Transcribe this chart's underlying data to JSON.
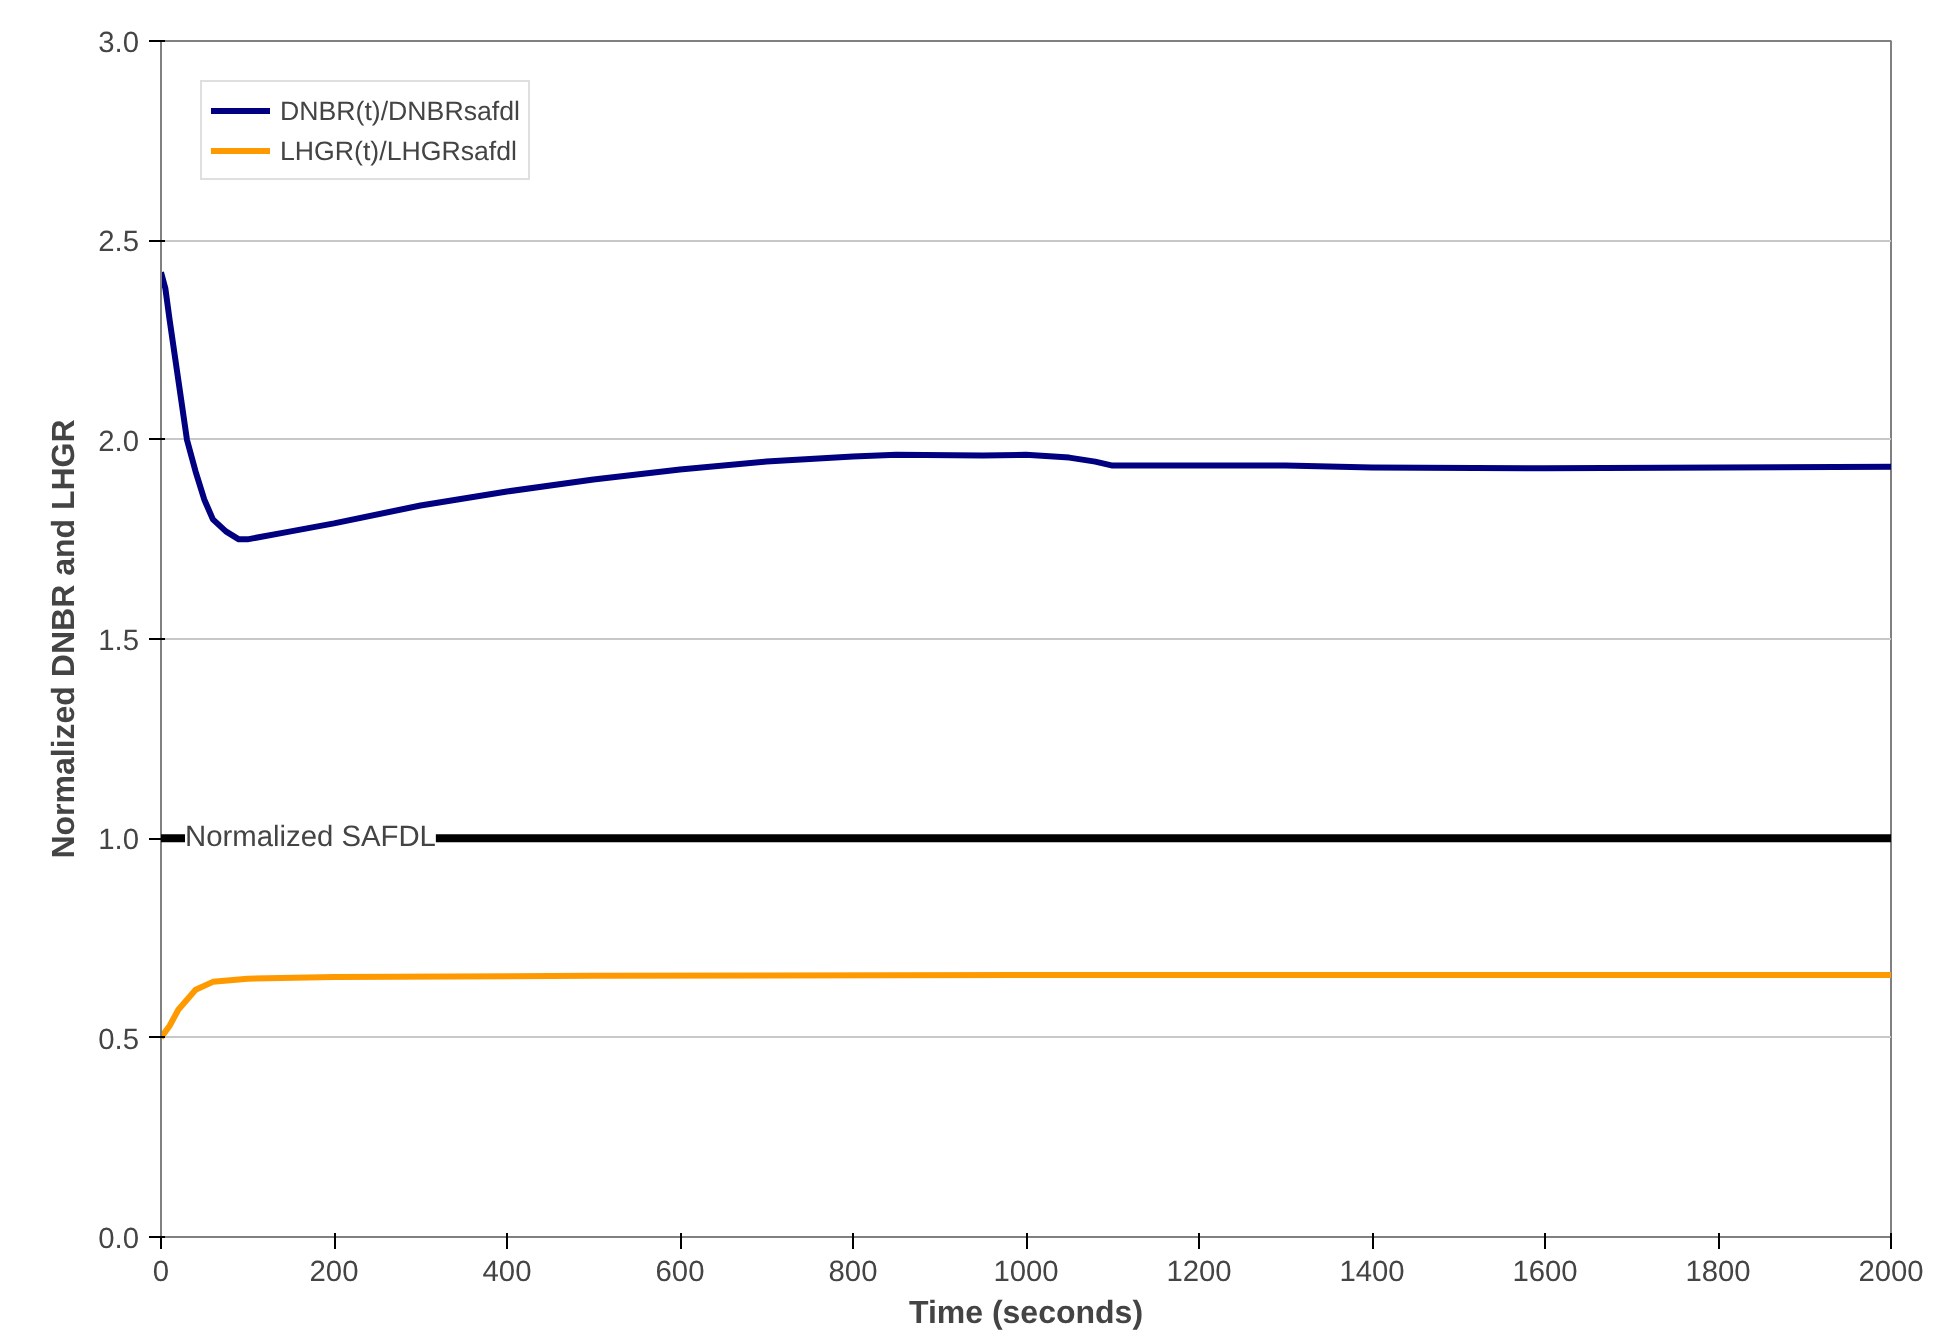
{
  "chart_data": {
    "type": "line",
    "xlabel": "Time (seconds)",
    "ylabel": "Normalized DNBR and LHGR",
    "xlim": [
      0,
      2000
    ],
    "xticks": [
      0,
      200,
      400,
      600,
      800,
      1000,
      1200,
      1400,
      1600,
      1800,
      2000
    ],
    "ylim": [
      0,
      3
    ],
    "yticks": [
      {
        "value": 0,
        "label": "0.0"
      },
      {
        "value": 0.5,
        "label": "0.5"
      },
      {
        "value": 1,
        "label": "1.0"
      },
      {
        "value": 1.5,
        "label": "1.5"
      },
      {
        "value": 2,
        "label": "2.0"
      },
      {
        "value": 2.5,
        "label": "2.5"
      },
      {
        "value": 3,
        "label": "3.0"
      }
    ],
    "grid": "y",
    "legend": "top left",
    "marker": "none",
    "line_style": "solid",
    "series": [
      {
        "name": "DNBR(t)/DNBRsafdl",
        "color": "#000080",
        "x": [
          0,
          5,
          10,
          20,
          30,
          40,
          50,
          60,
          75,
          90,
          100,
          150,
          200,
          300,
          400,
          500,
          600,
          700,
          800,
          850,
          950,
          1000,
          1050,
          1080,
          1100,
          1300,
          1400,
          1600,
          2000
        ],
        "values": [
          2.42,
          2.38,
          2.3,
          2.15,
          2.0,
          1.92,
          1.85,
          1.8,
          1.77,
          1.75,
          1.75,
          1.77,
          1.79,
          1.835,
          1.87,
          1.9,
          1.925,
          1.945,
          1.958,
          1.962,
          1.96,
          1.962,
          1.955,
          1.945,
          1.935,
          1.935,
          1.93,
          1.928,
          1.932
        ]
      },
      {
        "name": "LHGR(t)/LHGRsafdl",
        "color": "#ff9900",
        "x": [
          0,
          10,
          20,
          40,
          60,
          100,
          200,
          500,
          1000,
          2000
        ],
        "values": [
          0.5,
          0.53,
          0.57,
          0.62,
          0.64,
          0.648,
          0.652,
          0.655,
          0.657,
          0.657
        ]
      }
    ],
    "ref_lines": [
      {
        "axis": "y",
        "value": 1.0,
        "label": "Normalized SAFDL",
        "color": "#000000",
        "line_style": "solid"
      }
    ]
  }
}
